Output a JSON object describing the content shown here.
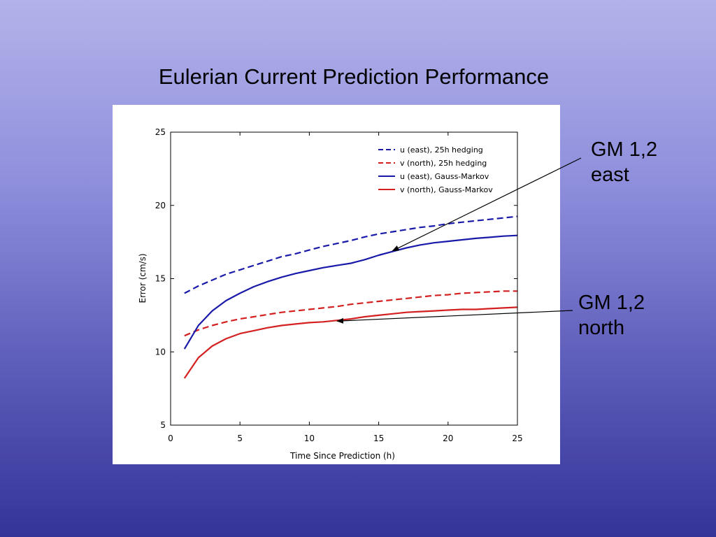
{
  "slide": {
    "title": "Eulerian Current Prediction Performance",
    "callouts": [
      {
        "line1": "GM 1,2",
        "line2": "east",
        "target_x": 16,
        "target_y": 16.9
      },
      {
        "line1": "GM 1,2",
        "line2": "north",
        "target_x": 12,
        "target_y": 12.1
      }
    ]
  },
  "chart_data": {
    "type": "line",
    "title": "",
    "xlabel": "Time Since Prediction (h)",
    "ylabel": "Error (cm/s)",
    "xlim": [
      0,
      25
    ],
    "ylim": [
      5,
      25
    ],
    "xticks": [
      0,
      5,
      10,
      15,
      20,
      25
    ],
    "yticks": [
      5,
      10,
      15,
      20,
      25
    ],
    "grid": false,
    "legend_position": "top-right",
    "series": [
      {
        "name": "u (east), 25h hedging",
        "color": "#1a1aaa",
        "style": "dashed",
        "x": [
          1,
          2,
          3,
          4,
          5,
          6,
          7,
          8,
          9,
          10,
          11,
          12,
          13,
          14,
          15,
          16,
          17,
          18,
          19,
          20,
          21,
          22,
          23,
          24,
          25
        ],
        "y": [
          14.0,
          14.5,
          14.9,
          15.3,
          15.6,
          15.9,
          16.2,
          16.5,
          16.7,
          16.95,
          17.2,
          17.4,
          17.6,
          17.85,
          18.05,
          18.2,
          18.35,
          18.5,
          18.6,
          18.75,
          18.85,
          18.95,
          19.05,
          19.15,
          19.25
        ]
      },
      {
        "name": "v (north), 25h hedging",
        "color": "#d42020",
        "style": "dashed",
        "x": [
          1,
          2,
          3,
          4,
          5,
          6,
          7,
          8,
          9,
          10,
          11,
          12,
          13,
          14,
          15,
          16,
          17,
          18,
          19,
          20,
          21,
          22,
          23,
          24,
          25
        ],
        "y": [
          11.1,
          11.5,
          11.8,
          12.05,
          12.25,
          12.4,
          12.55,
          12.7,
          12.8,
          12.9,
          13.0,
          13.1,
          13.25,
          13.35,
          13.45,
          13.55,
          13.65,
          13.75,
          13.85,
          13.9,
          14.0,
          14.05,
          14.1,
          14.15,
          14.15
        ]
      },
      {
        "name": "u (east), Gauss-Markov",
        "color": "#1a1aaa",
        "style": "solid",
        "x": [
          1,
          2,
          3,
          4,
          5,
          6,
          7,
          8,
          9,
          10,
          11,
          12,
          13,
          14,
          15,
          16,
          17,
          18,
          19,
          20,
          21,
          22,
          23,
          24,
          25
        ],
        "y": [
          10.2,
          11.8,
          12.8,
          13.5,
          14.0,
          14.45,
          14.8,
          15.1,
          15.35,
          15.55,
          15.75,
          15.9,
          16.05,
          16.3,
          16.6,
          16.85,
          17.1,
          17.3,
          17.45,
          17.55,
          17.65,
          17.75,
          17.82,
          17.9,
          17.95
        ]
      },
      {
        "name": "v (north), Gauss-Markov",
        "color": "#d42020",
        "style": "solid",
        "x": [
          1,
          2,
          3,
          4,
          5,
          6,
          7,
          8,
          9,
          10,
          11,
          12,
          13,
          14,
          15,
          16,
          17,
          18,
          19,
          20,
          21,
          22,
          23,
          24,
          25
        ],
        "y": [
          8.2,
          9.6,
          10.4,
          10.9,
          11.25,
          11.45,
          11.65,
          11.8,
          11.9,
          12.0,
          12.05,
          12.15,
          12.25,
          12.4,
          12.5,
          12.6,
          12.7,
          12.75,
          12.8,
          12.85,
          12.9,
          12.9,
          12.95,
          13.0,
          13.05
        ]
      }
    ]
  }
}
